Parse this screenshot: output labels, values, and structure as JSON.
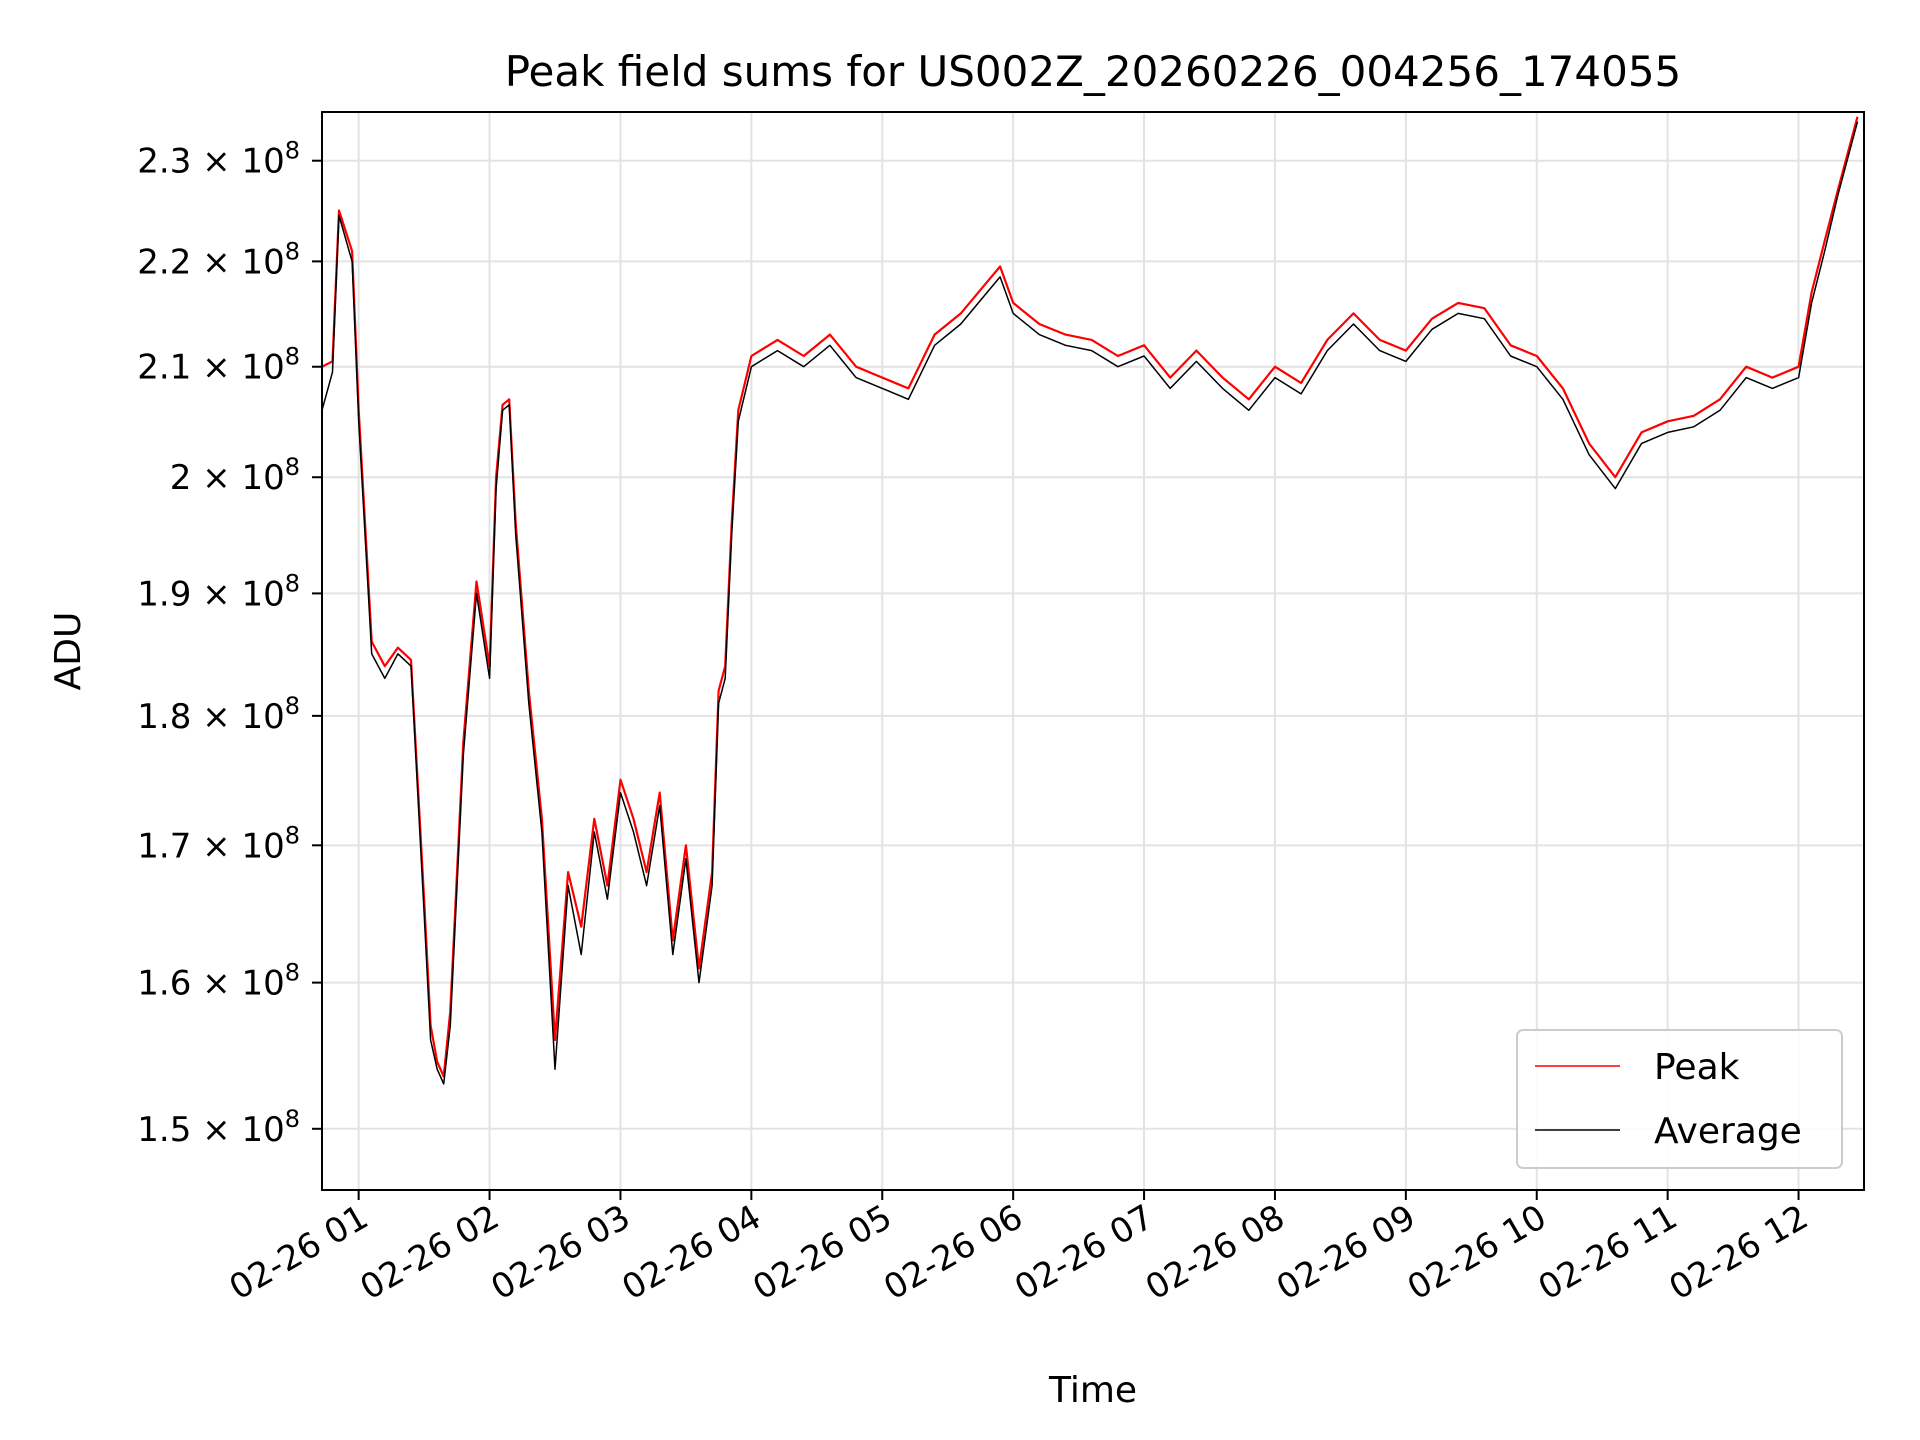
{
  "chart_data": {
    "type": "line",
    "title": "Peak field sums for US002Z_20260226_004256_174055",
    "xlabel": "Time",
    "ylabel": "ADU",
    "x_range": [
      "02-26 00:43",
      "02-26 12:30"
    ],
    "y_scale": "log",
    "ylim": [
      146000000,
      235000000
    ],
    "grid": true,
    "legend_position": "lower-right",
    "x_ticks": [
      "02-26 01",
      "02-26 02",
      "02-26 03",
      "02-26 04",
      "02-26 05",
      "02-26 06",
      "02-26 07",
      "02-26 08",
      "02-26 09",
      "02-26 10",
      "02-26 11",
      "02-26 12"
    ],
    "x_tick_hours": [
      1,
      2,
      3,
      4,
      5,
      6,
      7,
      8,
      9,
      10,
      11,
      12
    ],
    "y_ticks": [
      {
        "mantissa": "1.5",
        "value": 150000000
      },
      {
        "mantissa": "1.6",
        "value": 160000000
      },
      {
        "mantissa": "1.7",
        "value": 170000000
      },
      {
        "mantissa": "1.8",
        "value": 180000000
      },
      {
        "mantissa": "1.9",
        "value": 190000000
      },
      {
        "mantissa": "2",
        "value": 200000000
      },
      {
        "mantissa": "2.1",
        "value": 210000000
      },
      {
        "mantissa": "2.2",
        "value": 220000000
      },
      {
        "mantissa": "2.3",
        "value": 230000000
      }
    ],
    "y_tick_multiplier": "× 10",
    "y_tick_exponent": "8",
    "series": [
      {
        "name": "Peak",
        "color": "#ff0000",
        "x_hours": [
          0.72,
          0.8,
          0.85,
          0.95,
          1.0,
          1.1,
          1.2,
          1.3,
          1.4,
          1.5,
          1.55,
          1.6,
          1.65,
          1.7,
          1.8,
          1.9,
          2.0,
          2.05,
          2.1,
          2.15,
          2.2,
          2.3,
          2.4,
          2.5,
          2.6,
          2.7,
          2.8,
          2.9,
          3.0,
          3.1,
          3.2,
          3.3,
          3.4,
          3.5,
          3.6,
          3.7,
          3.75,
          3.8,
          3.85,
          3.9,
          4.0,
          4.2,
          4.4,
          4.6,
          4.8,
          5.0,
          5.2,
          5.4,
          5.6,
          5.8,
          5.9,
          6.0,
          6.2,
          6.4,
          6.6,
          6.8,
          7.0,
          7.2,
          7.4,
          7.6,
          7.8,
          8.0,
          8.2,
          8.4,
          8.6,
          8.8,
          9.0,
          9.2,
          9.4,
          9.6,
          9.8,
          10.0,
          10.2,
          10.4,
          10.6,
          10.8,
          11.0,
          11.2,
          11.4,
          11.6,
          11.8,
          12.0,
          12.1,
          12.2,
          12.3,
          12.45
        ],
        "y": [
          210000000,
          210500000,
          225000000,
          221000000,
          206000000,
          186000000,
          184000000,
          185500000,
          184500000,
          166000000,
          157000000,
          154500000,
          153500000,
          158000000,
          178000000,
          191000000,
          184000000,
          200000000,
          206500000,
          207000000,
          196000000,
          182000000,
          172000000,
          156000000,
          168000000,
          164000000,
          172000000,
          167000000,
          175000000,
          172000000,
          168000000,
          174000000,
          163000000,
          170000000,
          161000000,
          168000000,
          182000000,
          184000000,
          196000000,
          206000000,
          211000000,
          212500000,
          211000000,
          213000000,
          210000000,
          209000000,
          208000000,
          213000000,
          215000000,
          218000000,
          219500000,
          216000000,
          214000000,
          213000000,
          212500000,
          211000000,
          212000000,
          209000000,
          211500000,
          209000000,
          207000000,
          210000000,
          208500000,
          212500000,
          215000000,
          212500000,
          211500000,
          214500000,
          216000000,
          215500000,
          212000000,
          211000000,
          208000000,
          203000000,
          200000000,
          204000000,
          205000000,
          205500000,
          207000000,
          210000000,
          209000000,
          210000000,
          217000000,
          222000000,
          227000000,
          234500000
        ]
      },
      {
        "name": "Average",
        "color": "#000000",
        "x_hours": [
          0.72,
          0.8,
          0.85,
          0.95,
          1.0,
          1.1,
          1.2,
          1.3,
          1.4,
          1.5,
          1.55,
          1.6,
          1.65,
          1.7,
          1.8,
          1.9,
          2.0,
          2.05,
          2.1,
          2.15,
          2.2,
          2.3,
          2.4,
          2.5,
          2.6,
          2.7,
          2.8,
          2.9,
          3.0,
          3.1,
          3.2,
          3.3,
          3.4,
          3.5,
          3.6,
          3.7,
          3.75,
          3.8,
          3.85,
          3.9,
          4.0,
          4.2,
          4.4,
          4.6,
          4.8,
          5.0,
          5.2,
          5.4,
          5.6,
          5.8,
          5.9,
          6.0,
          6.2,
          6.4,
          6.6,
          6.8,
          7.0,
          7.2,
          7.4,
          7.6,
          7.8,
          8.0,
          8.2,
          8.4,
          8.6,
          8.8,
          9.0,
          9.2,
          9.4,
          9.6,
          9.8,
          10.0,
          10.2,
          10.4,
          10.6,
          10.8,
          11.0,
          11.2,
          11.4,
          11.6,
          11.8,
          12.0,
          12.1,
          12.2,
          12.3,
          12.45
        ],
        "y": [
          206000000,
          209500000,
          224500000,
          220000000,
          205000000,
          185000000,
          183000000,
          185000000,
          184000000,
          165000000,
          156000000,
          154000000,
          153000000,
          157000000,
          177000000,
          190000000,
          183000000,
          199000000,
          206000000,
          206500000,
          195000000,
          181000000,
          171000000,
          154000000,
          167000000,
          162000000,
          171000000,
          166000000,
          174000000,
          171000000,
          167000000,
          173000000,
          162000000,
          169000000,
          160000000,
          167000000,
          181000000,
          183000000,
          195000000,
          205000000,
          210000000,
          211500000,
          210000000,
          212000000,
          209000000,
          208000000,
          207000000,
          212000000,
          214000000,
          217000000,
          218500000,
          215000000,
          213000000,
          212000000,
          211500000,
          210000000,
          211000000,
          208000000,
          210500000,
          208000000,
          206000000,
          209000000,
          207500000,
          211500000,
          214000000,
          211500000,
          210500000,
          213500000,
          215000000,
          214500000,
          211000000,
          210000000,
          207000000,
          202000000,
          199000000,
          203000000,
          204000000,
          204500000,
          206000000,
          209000000,
          208000000,
          209000000,
          216000000,
          221000000,
          226500000,
          234000000
        ]
      }
    ]
  }
}
